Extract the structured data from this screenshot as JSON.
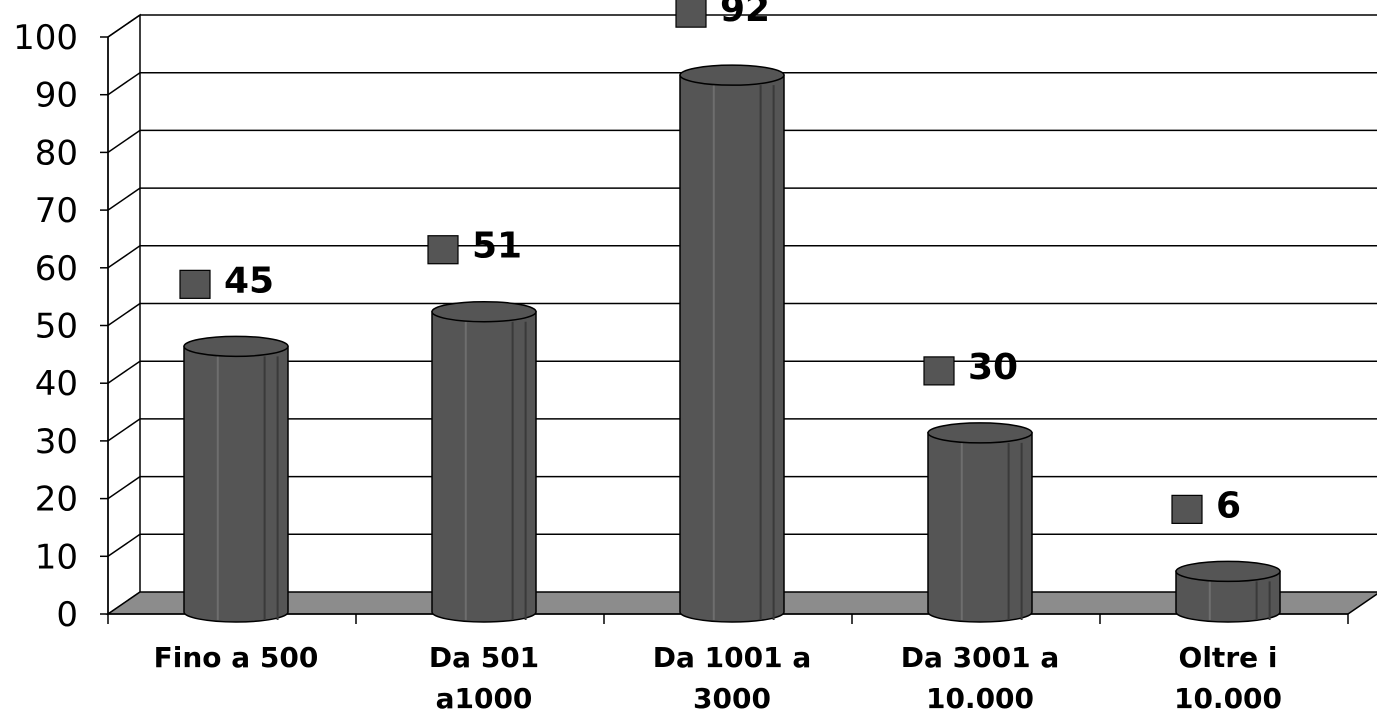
{
  "chart_data": {
    "type": "bar",
    "style": "3d-cylinder",
    "categories": [
      [
        "Fino a 500"
      ],
      [
        "Da 501",
        "a1000"
      ],
      [
        "Da 1001 a",
        "3000"
      ],
      [
        "Da 3001 a",
        "10.000"
      ],
      [
        "Oltre i",
        "10.000"
      ]
    ],
    "values": [
      45,
      51,
      92,
      30,
      6
    ],
    "value_labels": [
      "45",
      "51",
      "92",
      "30",
      "6"
    ],
    "ylim": [
      0,
      100
    ],
    "yticks": [
      0,
      10,
      20,
      30,
      40,
      50,
      60,
      70,
      80,
      90,
      100
    ],
    "ytick_labels": [
      "0",
      "10",
      "20",
      "30",
      "40",
      "50",
      "60",
      "70",
      "80",
      "90",
      "100"
    ],
    "grid": true,
    "legend": false,
    "colors": {
      "bar": "#555555",
      "bar_dark": "#3a3a3a",
      "bar_light": "#6e6e6e",
      "floor": "#8c8c8c",
      "marker": "#555555",
      "grid": "#000000"
    }
  }
}
